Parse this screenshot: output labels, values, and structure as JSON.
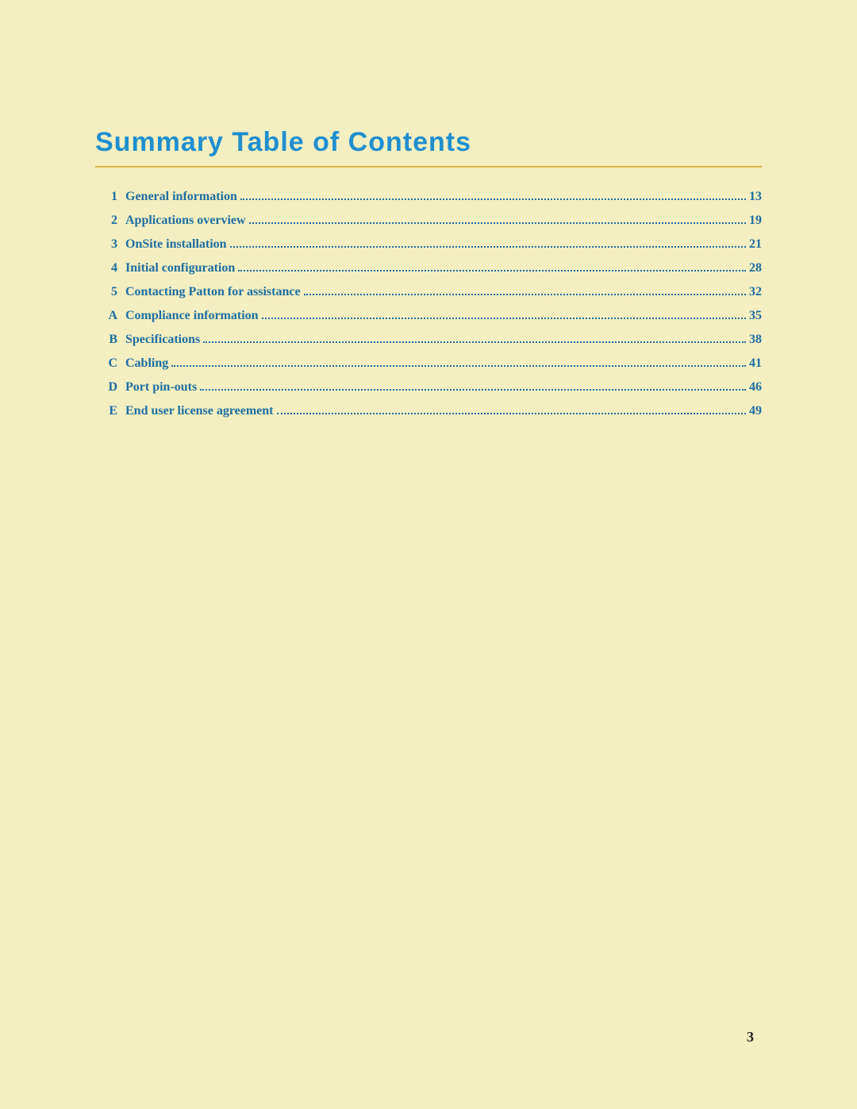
{
  "title": "Summary Table of Contents",
  "title_color": "#1f8fcf",
  "title_fontsize": 34,
  "rule_color": "#d9b34a",
  "link_color": "#1f6ea0",
  "background_color": "#f3efc1",
  "entry_fontsize": 16,
  "entries": [
    {
      "num": "1",
      "label": "General information",
      "page": "13"
    },
    {
      "num": "2",
      "label": "Applications overview",
      "page": "19"
    },
    {
      "num": "3",
      "label": "OnSite installation",
      "page": "21"
    },
    {
      "num": "4",
      "label": "Initial configuration",
      "page": "28"
    },
    {
      "num": "5",
      "label": "Contacting Patton for assistance",
      "page": "32"
    },
    {
      "num": "A",
      "label": "Compliance information",
      "page": "35"
    },
    {
      "num": "B",
      "label": "Specifications",
      "page": "38"
    },
    {
      "num": "C",
      "label": "Cabling",
      "page": "41"
    },
    {
      "num": "D",
      "label": "Port pin-outs",
      "page": "46"
    },
    {
      "num": "E",
      "label": "End user license agreement",
      "page": "49"
    }
  ],
  "page_number": "3"
}
